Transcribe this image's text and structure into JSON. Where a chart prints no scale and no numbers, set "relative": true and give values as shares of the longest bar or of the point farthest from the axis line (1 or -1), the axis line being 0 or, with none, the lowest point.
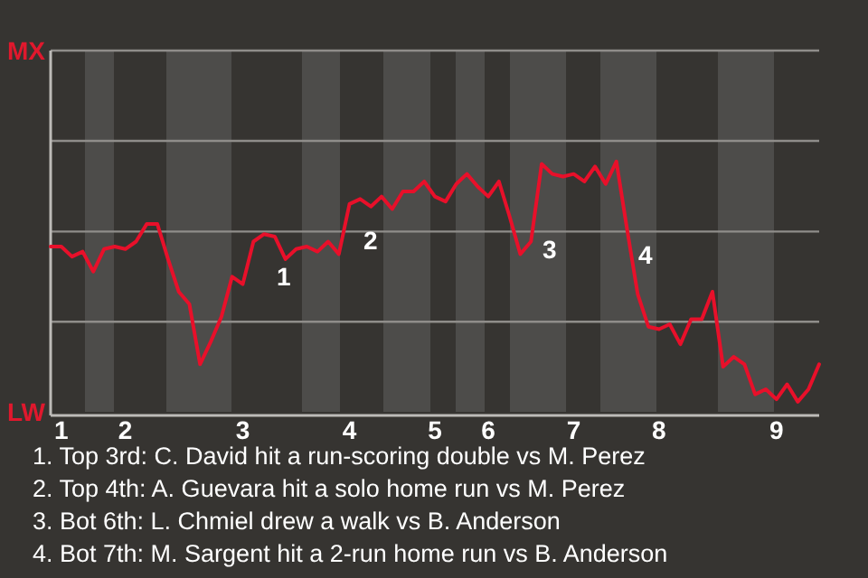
{
  "chart_data": {
    "type": "line",
    "relative": true,
    "ref_lines": [
      {
        "axis": "y",
        "value": 0.72,
        "color": "#8f8d8a"
      },
      {
        "axis": "y",
        "value": 0.36,
        "color": "#8f8d8a"
      }
    ],
    "marker": "none",
    "line_style": "solid",
    "categories": [
      null,
      "1",
      null,
      null,
      null,
      null,
      null,
      "2",
      null,
      null,
      null,
      null,
      null,
      null,
      null,
      null,
      null,
      null,
      "3",
      null,
      null,
      null,
      null,
      null,
      null,
      null,
      null,
      null,
      "4",
      null,
      null,
      null,
      null,
      null,
      null,
      null,
      "5",
      null,
      null,
      null,
      null,
      "6",
      null,
      null,
      null,
      null,
      null,
      null,
      null,
      "7",
      null,
      null,
      null,
      null,
      null,
      null,
      null,
      "8",
      null,
      null,
      null,
      null,
      null,
      null,
      null,
      null,
      null,
      null,
      "9",
      null,
      null,
      null,
      null
    ],
    "series": [
      {
        "color": "#e8102a",
        "values": [
          0.66,
          0.66,
          0.62,
          0.64,
          0.56,
          0.65,
          0.66,
          0.65,
          0.68,
          0.75,
          0.75,
          0.61,
          0.48,
          0.43,
          0.19,
          0.28,
          0.38,
          0.54,
          0.51,
          0.68,
          0.71,
          0.7,
          0.61,
          0.65,
          0.66,
          0.64,
          0.68,
          0.63,
          0.83,
          0.85,
          0.82,
          0.86,
          0.81,
          0.88,
          0.88,
          0.92,
          0.86,
          0.84,
          0.91,
          0.95,
          0.9,
          0.86,
          0.92,
          0.78,
          0.63,
          0.68,
          0.99,
          0.95,
          0.94,
          0.95,
          0.92,
          0.98,
          0.91,
          1,
          0.73,
          0.47,
          0.34,
          0.33,
          0.35,
          0.27,
          0.37,
          0.37,
          0.48,
          0.18,
          0.22,
          0.19,
          0.07,
          0.09,
          0.05,
          0.11,
          0.04,
          0.09,
          0.19
        ]
      }
    ],
    "annotations": [
      "MX",
      "LW",
      "1",
      "2",
      "3",
      "4",
      "1. Top 3rd: C. David hit a run-scoring double vs M. Perez",
      "2. Top 4th: A. Guevara hit a solo home run vs M. Perez",
      "3. Bot 6th: L. Chmiel drew a walk vs B. Anderson",
      "4. Bot 7th: M. Sargent hit a 2-run home run vs B. Anderson"
    ]
  }
}
